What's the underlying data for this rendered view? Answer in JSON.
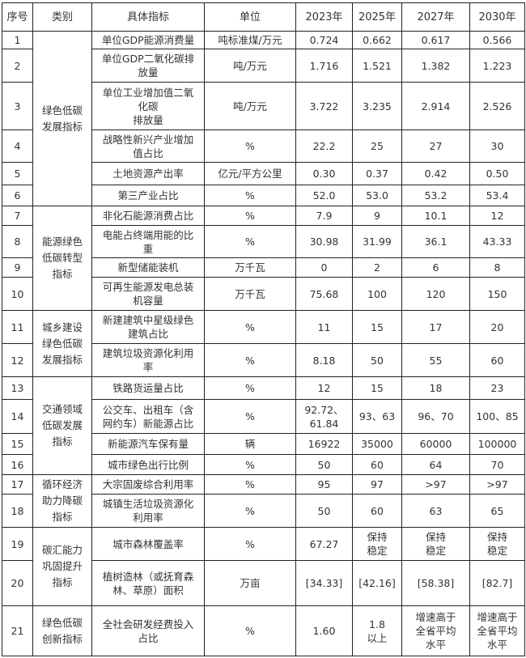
{
  "headers": [
    "序号",
    "类别",
    "具体指标",
    "单位",
    "2023年",
    "2025年",
    "2027年",
    "2030年"
  ],
  "categories": [
    "绿色低碳\n发展指标",
    "能源绿色\n低碳转型\n指标",
    "城乡建设\n绿色低碳\n发展指标",
    "交通领域\n低碳发展\n指标",
    "循环经济\n助力降碳\n指标",
    "碳汇能力\n巩固提升\n指标",
    "绿色低碳\n创新指标"
  ],
  "rows": [
    {
      "no": "1",
      "indicator": "单位GDP能源消费量",
      "unit": "吨标准煤/万元",
      "y2023": "0.724",
      "y2025": "0.662",
      "y2027": "0.617",
      "y2030": "0.566"
    },
    {
      "no": "2",
      "indicator": "单位GDP二氧化碳排\n放量",
      "unit": "吨/万元",
      "y2023": "1.716",
      "y2025": "1.521",
      "y2027": "1.382",
      "y2030": "1.223"
    },
    {
      "no": "3",
      "indicator": "单位工业增加值二氧\n化碳\n排放量",
      "unit": "吨/万元",
      "y2023": "3.722",
      "y2025": "3.235",
      "y2027": "2.914",
      "y2030": "2.526"
    },
    {
      "no": "4",
      "indicator": "战略性新兴产业增加\n值占比",
      "unit": "%",
      "y2023": "22.2",
      "y2025": "25",
      "y2027": "27",
      "y2030": "30"
    },
    {
      "no": "5",
      "indicator": "土地资源产出率",
      "unit": "亿元/平方公里",
      "y2023": "0.30",
      "y2025": "0.37",
      "y2027": "0.42",
      "y2030": "0.50"
    },
    {
      "no": "6",
      "indicator": "第三产业占比",
      "unit": "%",
      "y2023": "52.0",
      "y2025": "53.0",
      "y2027": "53.2",
      "y2030": "53.4"
    },
    {
      "no": "7",
      "indicator": "非化石能源消费占比",
      "unit": "%",
      "y2023": "7.9",
      "y2025": "9",
      "y2027": "10.1",
      "y2030": "12"
    },
    {
      "no": "8",
      "indicator": "电能占终端用能的比\n重",
      "unit": "%",
      "y2023": "30.98",
      "y2025": "31.99",
      "y2027": "36.1",
      "y2030": "43.33"
    },
    {
      "no": "9",
      "indicator": "新型储能装机",
      "unit": "万千瓦",
      "y2023": "0",
      "y2025": "2",
      "y2027": "6",
      "y2030": "8"
    },
    {
      "no": "10",
      "indicator": "可再生能源发电总装\n机容量",
      "unit": "万千瓦",
      "y2023": "75.68",
      "y2025": "100",
      "y2027": "120",
      "y2030": "150"
    },
    {
      "no": "11",
      "indicator": "新建建筑中星级绿色\n建筑占比",
      "unit": "%",
      "y2023": "11",
      "y2025": "15",
      "y2027": "17",
      "y2030": "20"
    },
    {
      "no": "12",
      "indicator": "建筑垃圾资源化利用\n率",
      "unit": "%",
      "y2023": "8.18",
      "y2025": "50",
      "y2027": "55",
      "y2030": "60"
    },
    {
      "no": "13",
      "indicator": "铁路货运量占比",
      "unit": "%",
      "y2023": "12",
      "y2025": "15",
      "y2027": "18",
      "y2030": "23"
    },
    {
      "no": "14",
      "indicator": "公交车、出租车（含\n网约车）新能源占比",
      "unit": "%",
      "y2023": "92.72、\n61.84",
      "y2025": "93、63",
      "y2027": "96、70",
      "y2030": "100、85"
    },
    {
      "no": "15",
      "indicator": "新能源汽车保有量",
      "unit": "辆",
      "y2023": "16922",
      "y2025": "35000",
      "y2027": "60000",
      "y2030": "100000"
    },
    {
      "no": "16",
      "indicator": "城市绿色出行比例",
      "unit": "%",
      "y2023": "50",
      "y2025": "60",
      "y2027": "64",
      "y2030": "70"
    },
    {
      "no": "17",
      "indicator": "大宗固废综合利用率",
      "unit": "%",
      "y2023": "95",
      "y2025": "97",
      "y2027": ">97",
      "y2030": ">97"
    },
    {
      "no": "18",
      "indicator": "城镇生活垃圾资源化\n利用率",
      "unit": "%",
      "y2023": "50",
      "y2025": "60",
      "y2027": "63",
      "y2030": "65"
    },
    {
      "no": "19",
      "indicator": "城市森林覆盖率",
      "unit": "%",
      "y2023": "67.27",
      "y2025": "保持\n稳定",
      "y2027": "保持\n稳定",
      "y2030": "保持\n稳定"
    },
    {
      "no": "20",
      "indicator": "植树造林（或抚育森\n林、草原）面积",
      "unit": "万亩",
      "y2023": "[34.33]",
      "y2025": "[42.16]",
      "y2027": "[58.38]",
      "y2030": "[82.7]"
    },
    {
      "no": "21",
      "indicator": "全社会研发经费投入\n占比",
      "unit": "%",
      "y2023": "1.60",
      "y2025": "1.8\n以上",
      "y2027": "增速高于\n全省平均\n水平",
      "y2030": "增速高于\n全省平均\n水平"
    }
  ]
}
